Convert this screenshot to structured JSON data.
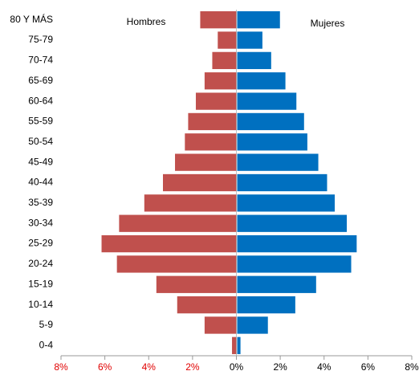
{
  "chart_data": {
    "type": "pyramid",
    "categories": [
      "80 Y MÁS",
      "75-79",
      "70-74",
      "65-69",
      "60-64",
      "55-59",
      "50-54",
      "45-49",
      "40-44",
      "35-39",
      "30-34",
      "25-29",
      "20-24",
      "15-19",
      "10-14",
      "5-9",
      "0-4"
    ],
    "series": [
      {
        "name": "Hombres",
        "color": "#c0504d",
        "side": "left",
        "values": [
          1.65,
          0.85,
          1.1,
          1.45,
          1.85,
          2.2,
          2.35,
          2.8,
          3.35,
          4.2,
          5.35,
          6.15,
          5.45,
          3.65,
          2.7,
          1.45,
          0.2
        ]
      },
      {
        "name": "Mujeres",
        "color": "#0070c0",
        "side": "right",
        "values": [
          1.95,
          1.15,
          1.55,
          2.2,
          2.7,
          3.05,
          3.2,
          3.7,
          4.1,
          4.45,
          5.0,
          5.45,
          5.2,
          3.6,
          2.65,
          1.4,
          0.15
        ]
      }
    ],
    "xlim": [
      -8,
      8
    ],
    "xticks": [
      {
        "value": -8,
        "label": "8%"
      },
      {
        "value": -6,
        "label": "6%"
      },
      {
        "value": -4,
        "label": "4%"
      },
      {
        "value": -2,
        "label": "2%"
      },
      {
        "value": 0,
        "label": "0%"
      },
      {
        "value": 2,
        "label": "2%"
      },
      {
        "value": 4,
        "label": "4%"
      },
      {
        "value": 6,
        "label": "6%"
      },
      {
        "value": 8,
        "label": "8%"
      }
    ]
  }
}
